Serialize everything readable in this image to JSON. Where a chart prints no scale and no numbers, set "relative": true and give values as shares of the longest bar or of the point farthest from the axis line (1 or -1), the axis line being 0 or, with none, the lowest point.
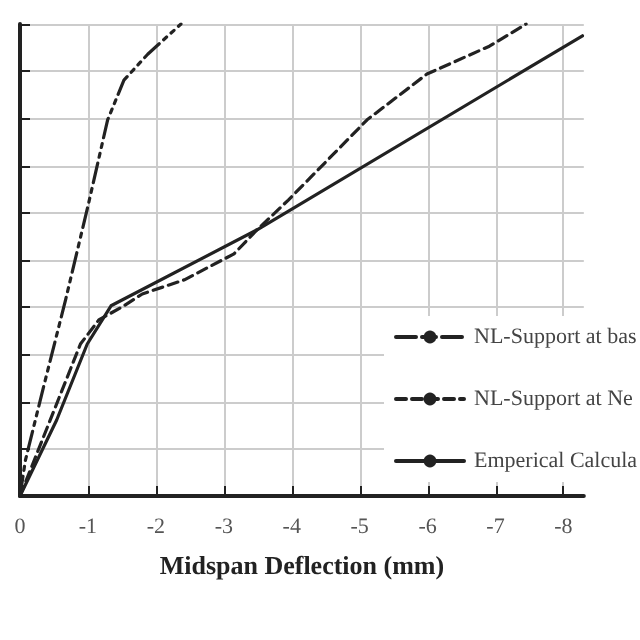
{
  "chart_data": {
    "type": "line",
    "xlabel": "Midspan Deflection (mm)",
    "relative": true,
    "xlim": [
      0,
      -8.3
    ],
    "xticks": [
      0,
      -1,
      -2,
      -3,
      -4,
      -5,
      -6,
      -7,
      -8
    ],
    "grid": true,
    "legend": "bottom right",
    "marker": "none",
    "series": [
      {
        "name": "NL-Support at bas",
        "color": "#222222",
        "line_style": "dotted",
        "x": [
          0,
          -0.08,
          -0.35,
          -0.67,
          -1.0,
          -1.29,
          -1.53,
          -1.88,
          -2.37
        ],
        "values": [
          0,
          0.076,
          0.233,
          0.415,
          0.614,
          0.797,
          0.881,
          0.936,
          1.0
        ]
      },
      {
        "name": "NL-Support at Ne",
        "color": "#222222",
        "line_style": "dashed",
        "x": [
          0,
          -0.89,
          -1.16,
          -1.53,
          -1.8,
          -2.42,
          -3.15,
          -3.49,
          -3.95,
          -5.11,
          -5.99,
          -6.91,
          -7.45
        ],
        "values": [
          0,
          0.322,
          0.373,
          0.403,
          0.428,
          0.458,
          0.513,
          0.564,
          0.627,
          0.797,
          0.894,
          0.953,
          1.0
        ]
      },
      {
        "name": "Emperical Calcula",
        "color": "#222222",
        "line_style": "solid",
        "x": [
          0,
          -0.54,
          -0.99,
          -1.34,
          -3.49,
          -8.28
        ],
        "values": [
          0,
          0.161,
          0.322,
          0.403,
          0.564,
          0.975
        ]
      }
    ]
  }
}
